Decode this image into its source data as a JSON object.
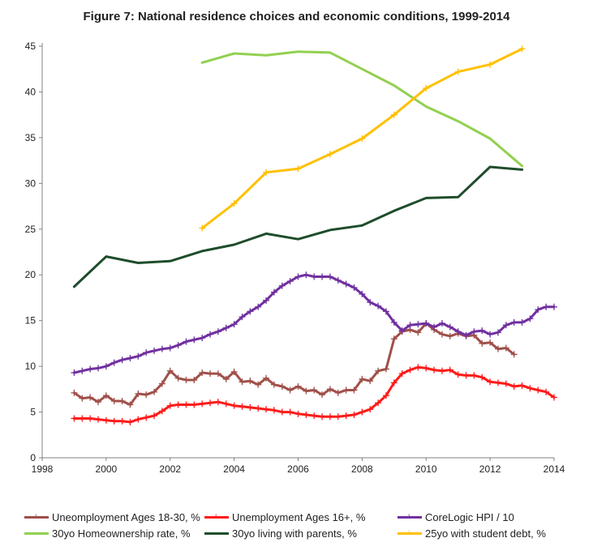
{
  "title": "Figure 7: National residence choices and economic conditions, 1999-2014",
  "chart_data": {
    "type": "line",
    "title": "Figure 7: National residence choices and economic conditions, 1999-2014",
    "xlabel": "",
    "ylabel": "",
    "xlim": [
      1998,
      2014
    ],
    "ylim": [
      0,
      45
    ],
    "x_ticks": [
      "1998",
      "2000",
      "2002",
      "2004",
      "2006",
      "2008",
      "2010",
      "2012",
      "2014"
    ],
    "y_ticks": [
      "0",
      "5",
      "10",
      "15",
      "20",
      "25",
      "30",
      "35",
      "40",
      "45"
    ],
    "grid": false,
    "legend_position": "bottom",
    "series": [
      {
        "name": "Uneomployment Ages 18-30, %",
        "color": "#a0504a",
        "marker": "plus",
        "points": [
          [
            1999.0,
            7.1
          ],
          [
            1999.25,
            6.5
          ],
          [
            1999.5,
            6.6
          ],
          [
            1999.75,
            6.1
          ],
          [
            2000.0,
            6.8
          ],
          [
            2000.25,
            6.2
          ],
          [
            2000.5,
            6.2
          ],
          [
            2000.75,
            5.8
          ],
          [
            2001.0,
            7.0
          ],
          [
            2001.25,
            6.9
          ],
          [
            2001.5,
            7.2
          ],
          [
            2001.75,
            8.1
          ],
          [
            2002.0,
            9.5
          ],
          [
            2002.25,
            8.7
          ],
          [
            2002.5,
            8.5
          ],
          [
            2002.75,
            8.5
          ],
          [
            2003.0,
            9.3
          ],
          [
            2003.25,
            9.2
          ],
          [
            2003.5,
            9.2
          ],
          [
            2003.75,
            8.6
          ],
          [
            2004.0,
            9.4
          ],
          [
            2004.25,
            8.3
          ],
          [
            2004.5,
            8.4
          ],
          [
            2004.75,
            8.0
          ],
          [
            2005.0,
            8.7
          ],
          [
            2005.25,
            8.0
          ],
          [
            2005.5,
            7.8
          ],
          [
            2005.75,
            7.4
          ],
          [
            2006.0,
            7.8
          ],
          [
            2006.25,
            7.3
          ],
          [
            2006.5,
            7.4
          ],
          [
            2006.75,
            6.9
          ],
          [
            2007.0,
            7.5
          ],
          [
            2007.25,
            7.1
          ],
          [
            2007.5,
            7.4
          ],
          [
            2007.75,
            7.4
          ],
          [
            2008.0,
            8.6
          ],
          [
            2008.25,
            8.4
          ],
          [
            2008.5,
            9.5
          ],
          [
            2008.75,
            9.7
          ],
          [
            2009.0,
            13.0
          ],
          [
            2009.25,
            13.8
          ],
          [
            2009.5,
            14.0
          ],
          [
            2009.75,
            13.7
          ],
          [
            2010.0,
            14.7
          ],
          [
            2010.25,
            14.0
          ],
          [
            2010.5,
            13.5
          ],
          [
            2010.75,
            13.3
          ],
          [
            2011.0,
            13.6
          ],
          [
            2011.25,
            13.3
          ],
          [
            2011.5,
            13.4
          ],
          [
            2011.75,
            12.5
          ],
          [
            2012.0,
            12.6
          ],
          [
            2012.25,
            11.9
          ],
          [
            2012.5,
            12.0
          ],
          [
            2012.75,
            11.3
          ]
        ]
      },
      {
        "name": "Unemployment Ages 16+, %",
        "color": "#ff1a1a",
        "marker": "plus",
        "points": [
          [
            1999.0,
            4.3
          ],
          [
            1999.25,
            4.3
          ],
          [
            1999.5,
            4.3
          ],
          [
            1999.75,
            4.2
          ],
          [
            2000.0,
            4.1
          ],
          [
            2000.25,
            4.0
          ],
          [
            2000.5,
            4.0
          ],
          [
            2000.75,
            3.9
          ],
          [
            2001.0,
            4.2
          ],
          [
            2001.25,
            4.4
          ],
          [
            2001.5,
            4.6
          ],
          [
            2001.75,
            5.1
          ],
          [
            2002.0,
            5.7
          ],
          [
            2002.25,
            5.8
          ],
          [
            2002.5,
            5.8
          ],
          [
            2002.75,
            5.8
          ],
          [
            2003.0,
            5.9
          ],
          [
            2003.25,
            6.0
          ],
          [
            2003.5,
            6.1
          ],
          [
            2003.75,
            5.9
          ],
          [
            2004.0,
            5.7
          ],
          [
            2004.25,
            5.6
          ],
          [
            2004.5,
            5.5
          ],
          [
            2004.75,
            5.4
          ],
          [
            2005.0,
            5.3
          ],
          [
            2005.25,
            5.2
          ],
          [
            2005.5,
            5.0
          ],
          [
            2005.75,
            5.0
          ],
          [
            2006.0,
            4.8
          ],
          [
            2006.25,
            4.7
          ],
          [
            2006.5,
            4.6
          ],
          [
            2006.75,
            4.5
          ],
          [
            2007.0,
            4.5
          ],
          [
            2007.25,
            4.5
          ],
          [
            2007.5,
            4.6
          ],
          [
            2007.75,
            4.7
          ],
          [
            2008.0,
            5.0
          ],
          [
            2008.25,
            5.3
          ],
          [
            2008.5,
            6.0
          ],
          [
            2008.75,
            6.8
          ],
          [
            2009.0,
            8.2
          ],
          [
            2009.25,
            9.2
          ],
          [
            2009.5,
            9.6
          ],
          [
            2009.75,
            9.9
          ],
          [
            2010.0,
            9.8
          ],
          [
            2010.25,
            9.6
          ],
          [
            2010.5,
            9.5
          ],
          [
            2010.75,
            9.6
          ],
          [
            2011.0,
            9.1
          ],
          [
            2011.25,
            9.0
          ],
          [
            2011.5,
            9.0
          ],
          [
            2011.75,
            8.8
          ],
          [
            2012.0,
            8.3
          ],
          [
            2012.25,
            8.2
          ],
          [
            2012.5,
            8.1
          ],
          [
            2012.75,
            7.8
          ],
          [
            2013.0,
            7.9
          ],
          [
            2013.25,
            7.6
          ],
          [
            2013.5,
            7.4
          ],
          [
            2013.75,
            7.2
          ],
          [
            2014.0,
            6.6
          ]
        ]
      },
      {
        "name": "CoreLogic HPI / 10",
        "color": "#7030a0",
        "marker": "plus",
        "points": [
          [
            1999.0,
            9.3
          ],
          [
            1999.25,
            9.5
          ],
          [
            1999.5,
            9.7
          ],
          [
            1999.75,
            9.8
          ],
          [
            2000.0,
            10.0
          ],
          [
            2000.25,
            10.4
          ],
          [
            2000.5,
            10.7
          ],
          [
            2000.75,
            10.9
          ],
          [
            2001.0,
            11.1
          ],
          [
            2001.25,
            11.5
          ],
          [
            2001.5,
            11.7
          ],
          [
            2001.75,
            11.9
          ],
          [
            2002.0,
            12.0
          ],
          [
            2002.25,
            12.3
          ],
          [
            2002.5,
            12.7
          ],
          [
            2002.75,
            12.9
          ],
          [
            2003.0,
            13.1
          ],
          [
            2003.25,
            13.5
          ],
          [
            2003.5,
            13.8
          ],
          [
            2003.75,
            14.2
          ],
          [
            2004.0,
            14.6
          ],
          [
            2004.25,
            15.4
          ],
          [
            2004.5,
            16.0
          ],
          [
            2004.75,
            16.5
          ],
          [
            2005.0,
            17.2
          ],
          [
            2005.25,
            18.1
          ],
          [
            2005.5,
            18.8
          ],
          [
            2005.75,
            19.3
          ],
          [
            2006.0,
            19.8
          ],
          [
            2006.25,
            20.0
          ],
          [
            2006.5,
            19.8
          ],
          [
            2006.75,
            19.8
          ],
          [
            2007.0,
            19.8
          ],
          [
            2007.25,
            19.4
          ],
          [
            2007.5,
            19.0
          ],
          [
            2007.75,
            18.6
          ],
          [
            2008.0,
            17.9
          ],
          [
            2008.25,
            17.0
          ],
          [
            2008.5,
            16.6
          ],
          [
            2008.75,
            16.0
          ],
          [
            2009.0,
            14.8
          ],
          [
            2009.25,
            13.9
          ],
          [
            2009.5,
            14.5
          ],
          [
            2009.75,
            14.6
          ],
          [
            2010.0,
            14.7
          ],
          [
            2010.25,
            14.3
          ],
          [
            2010.5,
            14.7
          ],
          [
            2010.75,
            14.3
          ],
          [
            2011.0,
            13.8
          ],
          [
            2011.25,
            13.4
          ],
          [
            2011.5,
            13.8
          ],
          [
            2011.75,
            13.9
          ],
          [
            2012.0,
            13.5
          ],
          [
            2012.25,
            13.7
          ],
          [
            2012.5,
            14.5
          ],
          [
            2012.75,
            14.8
          ],
          [
            2013.0,
            14.8
          ],
          [
            2013.25,
            15.2
          ],
          [
            2013.5,
            16.2
          ],
          [
            2013.75,
            16.5
          ],
          [
            2014.0,
            16.5
          ]
        ]
      },
      {
        "name": "30yo Homeownership rate, %",
        "color": "#92d050",
        "marker": "none",
        "points": [
          [
            2003,
            43.2
          ],
          [
            2004,
            44.2
          ],
          [
            2005,
            44.0
          ],
          [
            2006,
            44.4
          ],
          [
            2007,
            44.3
          ],
          [
            2008,
            42.5
          ],
          [
            2009,
            40.7
          ],
          [
            2010,
            38.4
          ],
          [
            2011,
            36.8
          ],
          [
            2012,
            34.9
          ],
          [
            2013,
            31.9
          ]
        ]
      },
      {
        "name": "30yo living with parents, %",
        "color": "#1e4d2b",
        "marker": "none",
        "points": [
          [
            1999,
            18.7
          ],
          [
            2000,
            22.0
          ],
          [
            2001,
            21.3
          ],
          [
            2002,
            21.5
          ],
          [
            2003,
            22.6
          ],
          [
            2004,
            23.3
          ],
          [
            2005,
            24.5
          ],
          [
            2006,
            23.9
          ],
          [
            2007,
            24.9
          ],
          [
            2008,
            25.4
          ],
          [
            2009,
            27.0
          ],
          [
            2010,
            28.4
          ],
          [
            2011,
            28.5
          ],
          [
            2012,
            31.8
          ],
          [
            2013,
            31.5
          ]
        ]
      },
      {
        "name": "25yo with student debt, %",
        "color": "#ffc000",
        "marker": "plus",
        "points": [
          [
            2003,
            25.1
          ],
          [
            2004,
            27.8
          ],
          [
            2005,
            31.2
          ],
          [
            2006,
            31.6
          ],
          [
            2007,
            33.2
          ],
          [
            2008,
            34.9
          ],
          [
            2009,
            37.5
          ],
          [
            2010,
            40.4
          ],
          [
            2011,
            42.2
          ],
          [
            2012,
            43.0
          ],
          [
            2013,
            44.7
          ]
        ]
      }
    ]
  },
  "legend": {
    "rows": [
      [
        {
          "label": "Uneomployment Ages 18-30, %",
          "color": "#a0504a",
          "marker": "+"
        },
        {
          "label": "Unemployment Ages 16+, %",
          "color": "#ff1a1a",
          "marker": "+"
        },
        {
          "label": "CoreLogic HPI / 10",
          "color": "#7030a0",
          "marker": "+"
        }
      ],
      [
        {
          "label": "30yo Homeownership rate, %",
          "color": "#92d050",
          "marker": ""
        },
        {
          "label": "30yo living with parents, %",
          "color": "#1e4d2b",
          "marker": ""
        },
        {
          "label": "25yo with student debt, %",
          "color": "#ffc000",
          "marker": "+"
        }
      ]
    ]
  }
}
